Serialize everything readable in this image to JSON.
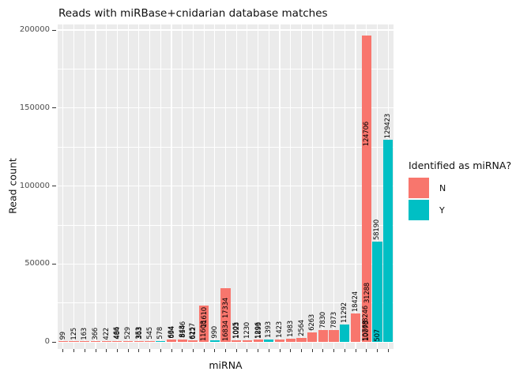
{
  "chart_data": {
    "type": "bar",
    "title": "Reads with miRBase+cnidarian database matches",
    "xlabel": "miRNA",
    "ylabel": "Read count",
    "ylim": [
      0,
      200000
    ],
    "yticks": [
      0,
      50000,
      100000,
      150000,
      200000
    ],
    "yticks_minor": [
      25000,
      75000,
      125000,
      175000
    ],
    "grid": "on",
    "panel_bg": "#EBEBEB",
    "grid_color": "#FFFFFF",
    "tick_label_color": "#4D4D4D",
    "legend": {
      "title": "Identified as miRNA?",
      "position": "right",
      "entries": [
        {
          "label": "N",
          "color": "#F8766D"
        },
        {
          "label": "Y",
          "color": "#00BFC4"
        }
      ]
    },
    "note": "x axis has no category tick labels; each bar is annotated with its read count rotated 90deg; several annotations overprint each other",
    "bars": [
      {
        "g": "N",
        "v": 99,
        "labels": [
          {
            "t": "99",
            "pos": "above"
          }
        ]
      },
      {
        "g": "N",
        "v": 125,
        "labels": [
          {
            "t": "125",
            "pos": "above"
          }
        ]
      },
      {
        "g": "N",
        "v": 163,
        "labels": [
          {
            "t": "163",
            "pos": "above"
          }
        ]
      },
      {
        "g": "N",
        "v": 366,
        "labels": [
          {
            "t": "366",
            "pos": "above"
          }
        ]
      },
      {
        "g": "N",
        "v": 422,
        "labels": [
          {
            "t": "422",
            "pos": "above"
          }
        ]
      },
      {
        "g": "N",
        "v": 500,
        "labels": [
          {
            "t": "466",
            "pos": "above"
          },
          {
            "t": "484",
            "pos": "above"
          }
        ]
      },
      {
        "g": "N",
        "v": 529,
        "labels": [
          {
            "t": "529",
            "pos": "above"
          }
        ]
      },
      {
        "g": "N",
        "v": 520,
        "labels": [
          {
            "t": "353",
            "pos": "above"
          },
          {
            "t": "363",
            "pos": "above"
          }
        ]
      },
      {
        "g": "N",
        "v": 545,
        "labels": [
          {
            "t": "545",
            "pos": "above"
          }
        ]
      },
      {
        "g": "Y",
        "v": 578,
        "labels": [
          {
            "t": "578",
            "pos": "above"
          }
        ]
      },
      {
        "g": "N",
        "v": 1400,
        "labels": [
          {
            "t": "684",
            "pos": "above"
          },
          {
            "t": "694",
            "pos": "above"
          }
        ]
      },
      {
        "g": "N",
        "v": 1500,
        "labels": [
          {
            "t": "848",
            "pos": "above"
          },
          {
            "t": "8146",
            "pos": "above"
          }
        ]
      },
      {
        "g": "N",
        "v": 800,
        "labels": [
          {
            "t": "6257",
            "pos": "above"
          },
          {
            "t": "612",
            "pos": "above"
          }
        ]
      },
      {
        "g": "N",
        "v": 23300,
        "labels": [
          {
            "t": "11608",
            "pos": "at",
            "u": 300
          },
          {
            "t": "11610",
            "pos": "at",
            "u": 9000
          }
        ]
      },
      {
        "g": "Y",
        "v": 990,
        "labels": [
          {
            "t": "990",
            "pos": "above"
          }
        ]
      },
      {
        "g": "N",
        "v": 34400,
        "labels": [
          {
            "t": "16834",
            "pos": "at",
            "u": 300
          },
          {
            "t": "17334",
            "pos": "at",
            "u": 15200
          }
        ]
      },
      {
        "g": "N",
        "v": 1200,
        "labels": [
          {
            "t": "1005",
            "pos": "above"
          },
          {
            "t": "1023",
            "pos": "above"
          }
        ]
      },
      {
        "g": "N",
        "v": 1230,
        "labels": [
          {
            "t": "1230",
            "pos": "above"
          }
        ]
      },
      {
        "g": "N",
        "v": 1300,
        "labels": [
          {
            "t": "1296",
            "pos": "above"
          },
          {
            "t": "1893",
            "pos": "above"
          }
        ]
      },
      {
        "g": "Y",
        "v": 1393,
        "labels": [
          {
            "t": "1393",
            "pos": "above"
          }
        ]
      },
      {
        "g": "N",
        "v": 1423,
        "labels": [
          {
            "t": "1423",
            "pos": "above"
          }
        ]
      },
      {
        "g": "N",
        "v": 1983,
        "labels": [
          {
            "t": "1983",
            "pos": "above"
          }
        ]
      },
      {
        "g": "N",
        "v": 2564,
        "labels": [
          {
            "t": "2564",
            "pos": "above"
          }
        ]
      },
      {
        "g": "N",
        "v": 6263,
        "labels": [
          {
            "t": "6263",
            "pos": "above"
          }
        ]
      },
      {
        "g": "N",
        "v": 7830,
        "labels": [
          {
            "t": "7830",
            "pos": "above"
          }
        ]
      },
      {
        "g": "N",
        "v": 7873,
        "labels": [
          {
            "t": "7873",
            "pos": "above"
          }
        ]
      },
      {
        "g": "Y",
        "v": 11292,
        "labels": [
          {
            "t": "11292",
            "pos": "above"
          }
        ]
      },
      {
        "g": "N",
        "v": 18424,
        "labels": [
          {
            "t": "18424",
            "pos": "above"
          }
        ]
      },
      {
        "g": "N",
        "v": 196600,
        "labels": [
          {
            "t": "124706",
            "pos": "at",
            "u": 125500
          },
          {
            "t": "31288",
            "pos": "at",
            "u": 25000
          },
          {
            "t": "8246",
            "pos": "at",
            "u": 12500
          },
          {
            "t": "10075",
            "pos": "at",
            "u": 350
          },
          {
            "t": "10768",
            "pos": "at",
            "u": 600
          }
        ]
      },
      {
        "g": "Y",
        "v": 64300,
        "labels": [
          {
            "t": "58190",
            "pos": "above"
          },
          {
            "t": "507",
            "pos": "at",
            "u": 350
          }
        ]
      },
      {
        "g": "Y",
        "v": 129423,
        "labels": [
          {
            "t": "129423",
            "pos": "above"
          }
        ]
      }
    ]
  }
}
